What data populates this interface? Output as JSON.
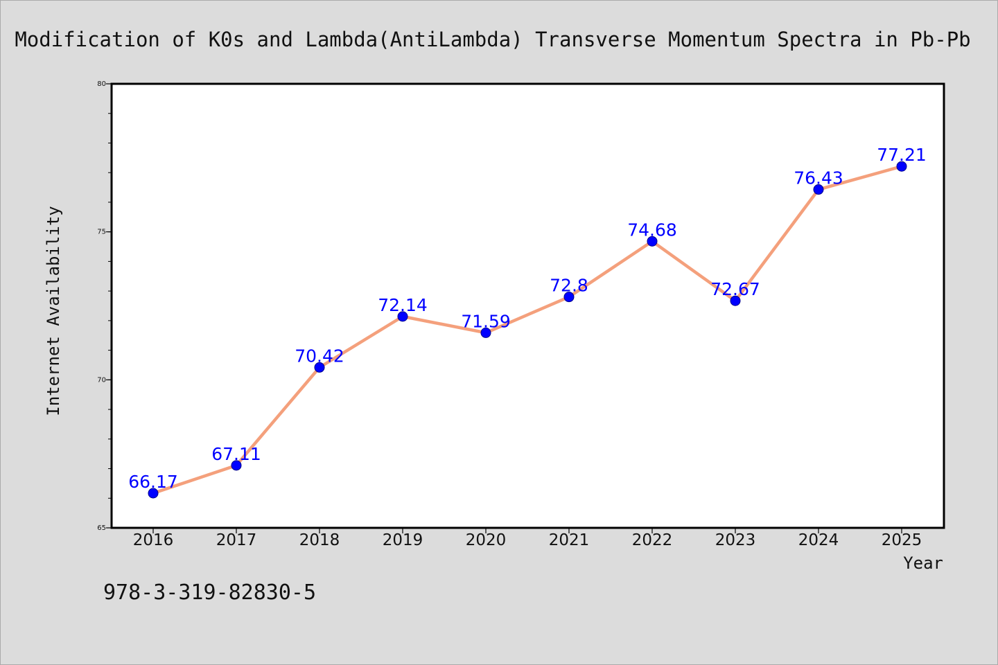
{
  "chart_data": {
    "type": "line",
    "title": "Modification of K0s and Lambda(AntiLambda) Transverse Momentum Spectra in Pb-Pb",
    "xlabel": "Year",
    "ylabel": "Internet Availability",
    "categories": [
      "2016",
      "2017",
      "2018",
      "2019",
      "2020",
      "2021",
      "2022",
      "2023",
      "2024",
      "2025"
    ],
    "values": [
      66.17,
      67.11,
      70.42,
      72.14,
      71.59,
      72.8,
      74.68,
      72.67,
      76.43,
      77.21
    ],
    "data_labels": [
      "66.17",
      "67.11",
      "70.42",
      "72.14",
      "71.59",
      "72.8",
      "74.68",
      "72.67",
      "76.43",
      "77.21"
    ],
    "ylim": [
      65,
      80
    ],
    "yticks": [
      65,
      70,
      75,
      80
    ],
    "ytick_labels": [
      "65",
      "70",
      "75",
      "80"
    ],
    "yminor_step": 1,
    "grid": false,
    "legend": "none",
    "colors": {
      "line": "#f4a07c",
      "marker": "#0000ff",
      "marker_edge": "#00008b",
      "data_label": "#0000ff",
      "plot_background": "#ffffff",
      "figure_background": "#dcdcdc"
    }
  },
  "footer": {
    "isbn": "978-3-319-82830-5"
  }
}
